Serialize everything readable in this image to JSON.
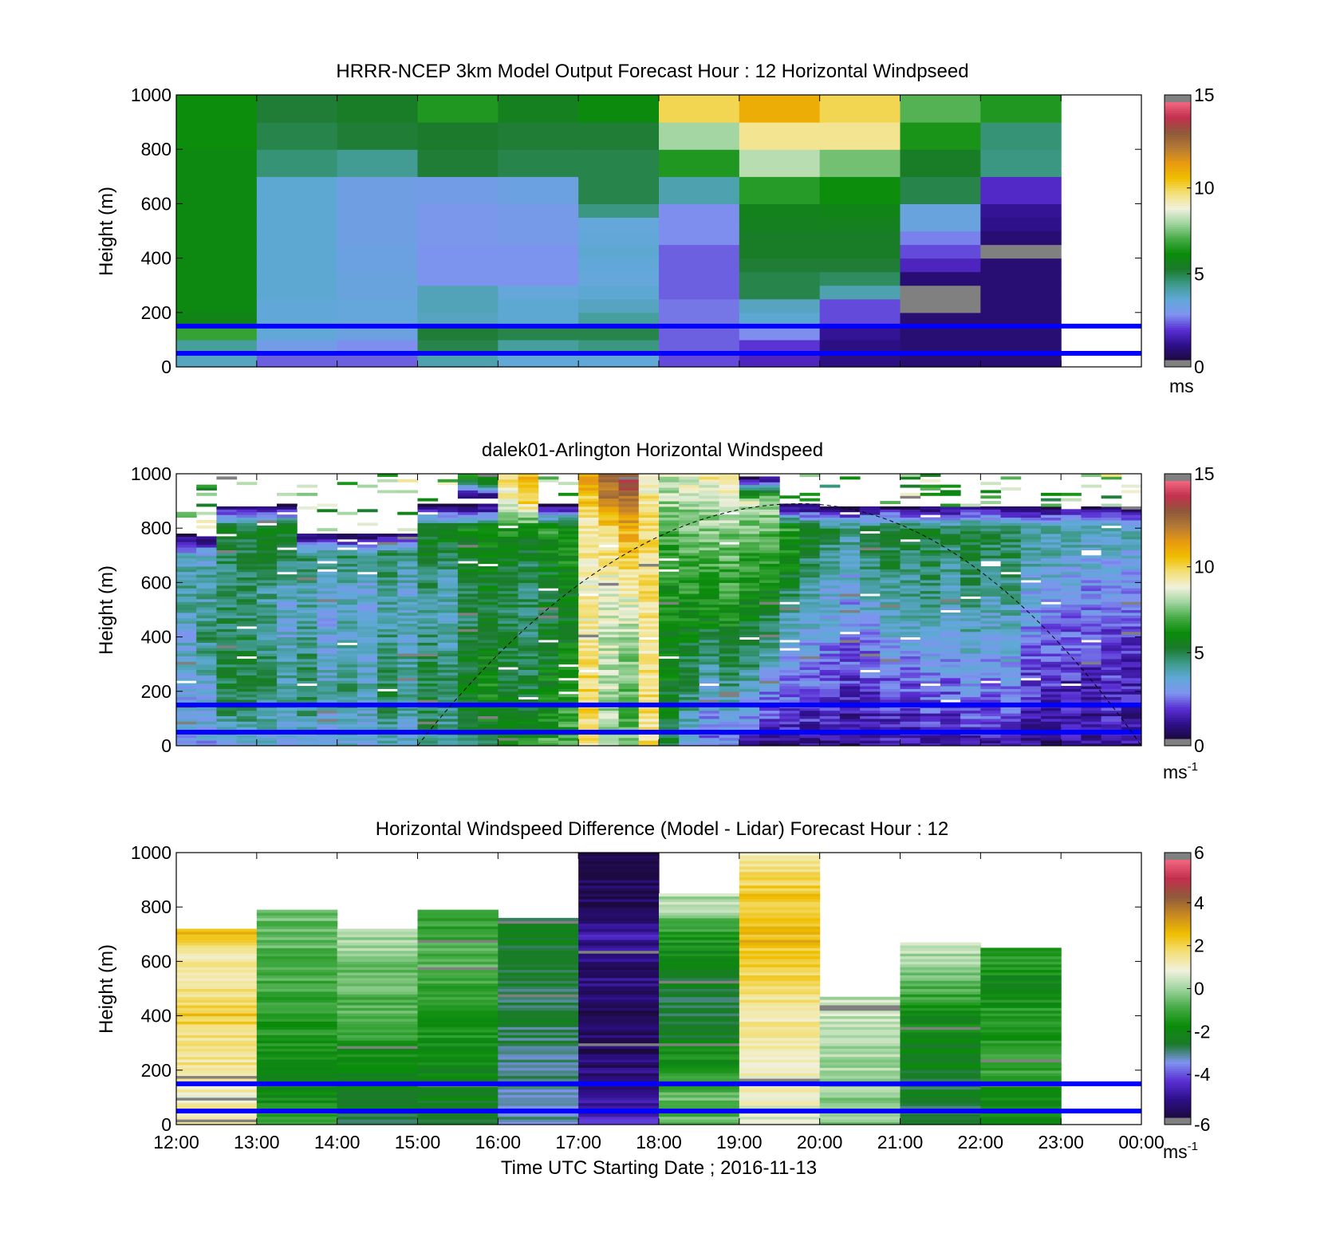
{
  "figure": {
    "xlabel": "Time UTC  Starting Date ; 2016-11-13",
    "x_ticks": [
      "12:00",
      "13:00",
      "14:00",
      "15:00",
      "16:00",
      "17:00",
      "18:00",
      "19:00",
      "20:00",
      "21:00",
      "22:00",
      "23:00",
      "00:00"
    ]
  },
  "colors": {
    "reference_lines": "#0000ff",
    "masked": "#808080",
    "windspeed_colormap": [
      "#1c0a3e",
      "#2e0f8a",
      "#5a2fd4",
      "#7f93ef",
      "#60a9d8",
      "#3e9a8a",
      "#1b7a2b",
      "#0a8c0a",
      "#46ab46",
      "#9fd49f",
      "#f1f1dd",
      "#f3e07a",
      "#f0be00",
      "#e89a10",
      "#b57a35",
      "#8f5a3a",
      "#c2304e",
      "#f1667f"
    ],
    "difference_colormap": [
      "#1c0a3e",
      "#2e0f8a",
      "#5a2fd4",
      "#7f93ef",
      "#1b7a2b",
      "#0a8c0a",
      "#46ab46",
      "#9fd49f",
      "#f1f1dd",
      "#f3e07a",
      "#f0be00",
      "#c98a20",
      "#8f5a3a",
      "#c2304e",
      "#f1667f"
    ]
  },
  "chart_data": [
    {
      "type": "heatmap",
      "title": "HRRR-NCEP 3km Model Output   Forecast Hour : 12 Horizontal Windpseed",
      "ylabel": "Height (m)",
      "xlabel": "",
      "x_range": [
        "12:00",
        "00:00"
      ],
      "ylim": [
        0,
        1000
      ],
      "y_ticks": [
        0,
        200,
        400,
        600,
        800,
        1000
      ],
      "colorbar": {
        "min": 0,
        "max": 15,
        "ticks": [
          0,
          5,
          10,
          15
        ],
        "unit": "ms",
        "unit_superscript": ""
      },
      "reference_lines_m": [
        50,
        150
      ],
      "columns_hours_utc": [
        12,
        13,
        14,
        15,
        16,
        17,
        18,
        19,
        20,
        21,
        22
      ],
      "levels_m": [
        [
          0,
          50
        ],
        [
          50,
          100
        ],
        [
          100,
          150
        ],
        [
          150,
          200
        ],
        [
          200,
          250
        ],
        [
          250,
          300
        ],
        [
          300,
          350
        ],
        [
          350,
          400
        ],
        [
          400,
          450
        ],
        [
          450,
          500
        ],
        [
          500,
          550
        ],
        [
          550,
          600
        ],
        [
          600,
          700
        ],
        [
          700,
          800
        ],
        [
          800,
          900
        ],
        [
          900,
          1000
        ]
      ],
      "values": [
        [
          3.8,
          4.2,
          6.8,
          5.8,
          6.0,
          6.0,
          6.0,
          6.0,
          6.0,
          6.0,
          6.0,
          6.0,
          6.0,
          6.0,
          6.2,
          6.2
        ],
        [
          2.2,
          3.0,
          3.5,
          3.5,
          3.5,
          3.6,
          3.6,
          3.6,
          3.6,
          3.6,
          3.6,
          3.6,
          3.6,
          4.6,
          5.0,
          5.2
        ],
        [
          2.2,
          2.6,
          3.2,
          3.4,
          3.4,
          3.3,
          3.3,
          3.2,
          3.2,
          3.1,
          3.1,
          3.1,
          3.1,
          4.3,
          5.2,
          5.4
        ],
        [
          4.0,
          5.0,
          5.2,
          3.8,
          3.9,
          3.9,
          2.7,
          2.7,
          2.7,
          2.8,
          2.8,
          2.8,
          3.0,
          5.2,
          5.3,
          6.5
        ],
        [
          3.5,
          4.2,
          5.0,
          3.6,
          3.6,
          3.4,
          2.7,
          2.7,
          2.7,
          2.9,
          2.9,
          2.9,
          3.2,
          5.0,
          5.2,
          5.6
        ],
        [
          3.5,
          4.5,
          5.0,
          4.2,
          3.8,
          3.6,
          3.4,
          3.5,
          3.6,
          3.5,
          3.4,
          4.5,
          5.0,
          5.0,
          5.2,
          6.1
        ],
        [
          2.0,
          2.2,
          2.2,
          2.4,
          2.4,
          2.2,
          2.2,
          2.2,
          2.2,
          2.6,
          2.6,
          2.6,
          4.0,
          6.5,
          8.0,
          10.0
        ],
        [
          1.5,
          1.8,
          2.6,
          3.6,
          3.8,
          5.0,
          5.0,
          5.2,
          5.4,
          5.4,
          5.6,
          5.7,
          6.6,
          8.2,
          9.5,
          11.0
        ],
        [
          0.8,
          0.8,
          1.0,
          2.0,
          2.0,
          4.0,
          4.8,
          5.2,
          5.4,
          5.4,
          5.6,
          5.8,
          6.2,
          7.5,
          9.5,
          10.0
        ],
        [
          0.6,
          0.6,
          0.6,
          0.6,
          -1,
          -1,
          0.6,
          1.5,
          2.0,
          2.5,
          3.3,
          3.3,
          5.0,
          5.4,
          6.4,
          7.2
        ],
        [
          0.6,
          0.6,
          0.6,
          0.6,
          0.6,
          0.6,
          0.6,
          0.6,
          -1,
          0.6,
          0.9,
          1.0,
          1.6,
          4.5,
          4.6,
          6.5
        ]
      ]
    },
    {
      "type": "heatmap",
      "title": "dalek01-Arlington  Horizontal Windspeed",
      "ylabel": "Height (m)",
      "xlabel": "",
      "x_range": [
        "12:00",
        "00:00"
      ],
      "ylim": [
        0,
        1000
      ],
      "y_ticks": [
        0,
        200,
        400,
        600,
        800,
        1000
      ],
      "colorbar": {
        "min": 0,
        "max": 15,
        "ticks": [
          0,
          5,
          10,
          15
        ],
        "unit": "ms",
        "unit_superscript": "-1"
      },
      "reference_lines_m": [
        50,
        150
      ],
      "column_width_minutes": 15,
      "overlay": {
        "style": "dashed",
        "shape": "arch",
        "x_start": "15:00",
        "x_peak": "19:45",
        "x_end": "00:00",
        "y_peak_m": 890,
        "y_base_m": 0
      },
      "columns_hours_utc_start": 12,
      "profile_anchor_heights_m": [
        0,
        100,
        200,
        300,
        400,
        500,
        600,
        700,
        800,
        900,
        1000
      ],
      "column_profiles": [
        [
          3.2,
          3.0,
          3.1,
          3.6,
          3.4,
          3.9,
          4.2,
          3.4,
          -1,
          -1,
          -1
        ],
        [
          3.0,
          3.2,
          3.4,
          4.0,
          4.6,
          3.8,
          4.4,
          3.6,
          -1,
          -1,
          -1
        ],
        [
          3.4,
          4.4,
          5.0,
          5.2,
          4.6,
          4.8,
          4.6,
          5.0,
          5.6,
          -1,
          -1
        ],
        [
          3.6,
          4.6,
          5.0,
          5.2,
          5.0,
          4.6,
          4.8,
          5.0,
          5.4,
          -1,
          -1
        ],
        [
          3.2,
          4.2,
          4.8,
          4.8,
          4.4,
          4.2,
          4.4,
          5.0,
          5.4,
          -1,
          -1
        ],
        [
          3.0,
          3.8,
          4.2,
          4.0,
          3.6,
          3.4,
          3.8,
          4.8,
          6.0,
          -1,
          -1
        ],
        [
          3.4,
          4.4,
          4.8,
          4.6,
          4.4,
          4.0,
          4.2,
          4.8,
          -1,
          -1,
          -1
        ],
        [
          3.0,
          3.6,
          3.8,
          3.6,
          3.4,
          3.2,
          3.8,
          4.6,
          -1,
          -1,
          -1
        ],
        [
          3.4,
          4.2,
          4.6,
          4.4,
          4.0,
          3.6,
          3.8,
          4.8,
          -1,
          -1,
          -1
        ],
        [
          3.0,
          3.6,
          3.8,
          3.6,
          3.2,
          3.0,
          3.4,
          4.6,
          -1,
          -1,
          -1
        ],
        [
          3.6,
          4.6,
          5.0,
          4.8,
          4.4,
          4.0,
          4.2,
          5.0,
          -1,
          -1,
          -1
        ],
        [
          3.2,
          3.8,
          4.2,
          4.2,
          3.8,
          3.6,
          3.6,
          4.6,
          -1,
          -1,
          -1
        ],
        [
          4.0,
          4.8,
          5.2,
          5.0,
          4.6,
          4.2,
          4.6,
          5.2,
          5.8,
          -1,
          -1
        ],
        [
          3.6,
          4.4,
          4.8,
          4.6,
          4.2,
          3.8,
          4.0,
          4.8,
          6.0,
          -1,
          -1
        ],
        [
          4.6,
          5.4,
          5.8,
          5.4,
          5.0,
          4.8,
          5.2,
          5.6,
          6.2,
          -1,
          7.8
        ],
        [
          5.2,
          6.0,
          6.2,
          6.0,
          5.6,
          5.4,
          5.6,
          6.0,
          6.4,
          -1,
          8.0
        ],
        [
          6.6,
          5.8,
          5.4,
          5.2,
          5.0,
          5.0,
          5.0,
          5.4,
          6.6,
          9.0,
          10.0
        ],
        [
          6.2,
          5.6,
          5.2,
          5.0,
          4.8,
          4.8,
          4.8,
          5.2,
          6.4,
          10.0,
          11.0
        ],
        [
          7.0,
          6.4,
          6.0,
          5.6,
          5.4,
          5.2,
          5.4,
          5.8,
          6.6,
          -1,
          -1
        ],
        [
          7.2,
          6.8,
          6.4,
          6.0,
          5.8,
          5.6,
          5.8,
          6.2,
          6.8,
          -1,
          -1
        ],
        [
          9.6,
          9.8,
          9.8,
          9.6,
          9.4,
          9.2,
          9.0,
          9.2,
          9.4,
          10.2,
          11.2
        ],
        [
          8.4,
          8.0,
          8.2,
          8.4,
          8.4,
          8.6,
          9.0,
          9.4,
          10.0,
          12.0,
          13.0
        ],
        [
          7.6,
          7.2,
          7.4,
          7.6,
          8.0,
          8.6,
          9.4,
          10.2,
          11.0,
          12.4,
          13.6
        ],
        [
          9.8,
          9.6,
          9.6,
          9.6,
          9.6,
          9.6,
          9.6,
          9.6,
          9.6,
          9.4,
          9.2
        ],
        [
          5.0,
          5.4,
          5.6,
          5.8,
          6.0,
          6.2,
          6.4,
          6.6,
          7.0,
          8.0,
          8.4
        ],
        [
          3.0,
          4.0,
          4.6,
          5.0,
          5.6,
          6.2,
          6.6,
          7.0,
          7.4,
          8.2,
          9.0
        ],
        [
          2.2,
          2.8,
          3.4,
          4.2,
          5.2,
          6.2,
          6.8,
          7.2,
          7.6,
          8.4,
          9.4
        ],
        [
          2.6,
          3.4,
          4.2,
          5.0,
          5.8,
          6.4,
          6.8,
          7.2,
          7.8,
          8.8,
          9.6
        ],
        [
          1.4,
          2.6,
          3.6,
          4.6,
          5.2,
          5.8,
          6.4,
          6.8,
          7.4,
          8.6,
          -1
        ],
        [
          1.0,
          1.8,
          2.6,
          3.6,
          4.6,
          5.4,
          6.2,
          6.8,
          7.2,
          8.4,
          -1
        ],
        [
          1.0,
          1.6,
          2.4,
          3.0,
          3.6,
          4.4,
          5.2,
          6.0,
          6.8,
          -1,
          -1
        ],
        [
          1.2,
          1.6,
          2.0,
          2.6,
          3.2,
          3.6,
          4.4,
          5.0,
          5.8,
          -1,
          -1
        ],
        [
          1.0,
          1.4,
          1.8,
          2.4,
          2.8,
          3.2,
          3.6,
          4.2,
          5.0,
          -1,
          -1
        ],
        [
          0.8,
          1.2,
          1.6,
          2.0,
          2.4,
          2.8,
          3.2,
          3.6,
          4.6,
          -1,
          -1
        ],
        [
          1.0,
          1.4,
          1.8,
          2.2,
          2.8,
          3.4,
          4.0,
          4.6,
          5.4,
          -1,
          -1
        ],
        [
          1.2,
          1.6,
          2.0,
          2.6,
          3.2,
          3.8,
          4.4,
          5.0,
          5.6,
          -1,
          -1
        ],
        [
          1.0,
          1.4,
          2.0,
          2.6,
          3.4,
          4.0,
          4.4,
          4.8,
          5.2,
          -1,
          -1
        ],
        [
          1.2,
          1.8,
          2.4,
          3.0,
          3.6,
          4.2,
          4.6,
          5.0,
          5.4,
          -1,
          -1
        ],
        [
          1.0,
          1.6,
          2.2,
          2.8,
          3.4,
          3.8,
          4.2,
          4.6,
          5.0,
          -1,
          -1
        ],
        [
          1.4,
          2.0,
          2.6,
          3.2,
          3.8,
          4.2,
          4.6,
          5.0,
          5.4,
          -1,
          -1
        ],
        [
          1.2,
          1.8,
          2.4,
          2.8,
          3.4,
          3.8,
          4.2,
          4.6,
          5.0,
          -1,
          -1
        ],
        [
          1.4,
          2.0,
          2.4,
          3.0,
          3.6,
          4.0,
          4.4,
          4.8,
          5.2,
          -1,
          -1
        ],
        [
          1.0,
          1.4,
          1.8,
          2.2,
          2.6,
          3.0,
          3.4,
          4.0,
          4.6,
          -1,
          -1
        ],
        [
          0.8,
          1.2,
          1.6,
          2.0,
          2.4,
          2.8,
          3.2,
          3.8,
          4.4,
          -1,
          -1
        ],
        [
          1.0,
          1.2,
          1.4,
          1.8,
          2.2,
          2.6,
          3.0,
          3.6,
          4.2,
          -1,
          -1
        ],
        [
          0.8,
          1.0,
          1.2,
          1.6,
          2.0,
          2.4,
          2.8,
          3.4,
          4.0,
          -1,
          -1
        ],
        [
          1.2,
          1.4,
          1.6,
          1.8,
          2.0,
          2.4,
          2.8,
          3.4,
          4.2,
          -1,
          -1
        ],
        [
          1.0,
          1.2,
          1.4,
          1.6,
          1.8,
          2.2,
          2.6,
          3.2,
          4.0,
          -1,
          -1
        ]
      ]
    },
    {
      "type": "heatmap",
      "title": "Horizontal Windspeed Difference (Model - Lidar) Forecast Hour : 12",
      "ylabel": "Height (m)",
      "xlabel": "Time UTC  Starting Date ; 2016-11-13",
      "x_range": [
        "12:00",
        "00:00"
      ],
      "ylim": [
        0,
        1000
      ],
      "y_ticks": [
        0,
        200,
        400,
        600,
        800,
        1000
      ],
      "colorbar": {
        "min": -6,
        "max": 6,
        "ticks": [
          -6,
          -4,
          -2,
          0,
          2,
          4,
          6
        ],
        "unit": "ms",
        "unit_superscript": "-1"
      },
      "reference_lines_m": [
        50,
        150
      ],
      "columns_hours_utc": [
        12,
        13,
        14,
        15,
        16,
        17,
        18,
        19,
        20,
        21,
        22
      ],
      "column_top_m": [
        720,
        790,
        720,
        790,
        760,
        1000,
        850,
        1000,
        470,
        670,
        650
      ],
      "profile_anchor_heights_m": [
        0,
        100,
        200,
        300,
        400,
        500,
        600,
        700,
        800,
        900,
        1000
      ],
      "column_profiles": [
        [
          1.2,
          1.0,
          1.6,
          1.4,
          2.4,
          1.6,
          1.2,
          2.4,
          null,
          null,
          null
        ],
        [
          -1.2,
          -1.8,
          -2.0,
          -1.4,
          -1.2,
          -1.0,
          -0.8,
          -0.6,
          null,
          null,
          null
        ],
        [
          -2.6,
          -2.4,
          -2.0,
          -1.4,
          -0.8,
          -0.6,
          -0.4,
          0.2,
          null,
          null,
          null
        ],
        [
          -2.2,
          -2.2,
          -2.0,
          -1.6,
          -1.4,
          -1.0,
          -0.6,
          -1.0,
          null,
          null,
          null
        ],
        [
          -3.0,
          -3.2,
          -3.0,
          -2.8,
          -2.8,
          -2.6,
          -2.6,
          -2.4,
          null,
          null,
          null
        ],
        [
          -4.6,
          -5.0,
          -5.4,
          -5.6,
          -5.6,
          -5.2,
          -5.4,
          -4.8,
          -5.6,
          -5.8,
          -5.8
        ],
        [
          -0.8,
          -0.4,
          -1.6,
          -2.0,
          -2.8,
          -2.4,
          -2.0,
          -1.4,
          0.2,
          null,
          null
        ],
        [
          0.6,
          1.0,
          1.0,
          1.2,
          1.4,
          1.8,
          2.2,
          2.6,
          2.4,
          2.0,
          1.4
        ],
        [
          -0.2,
          -0.2,
          0.0,
          0.0,
          0.4,
          null,
          null,
          null,
          null,
          null,
          null
        ],
        [
          -2.4,
          -2.6,
          -2.2,
          -2.0,
          -1.8,
          -0.8,
          0.2,
          null,
          null,
          null,
          null
        ],
        [
          -2.0,
          -1.6,
          -1.0,
          -1.4,
          -1.2,
          -2.2,
          -1.2,
          null,
          null,
          null,
          null
        ]
      ]
    }
  ]
}
